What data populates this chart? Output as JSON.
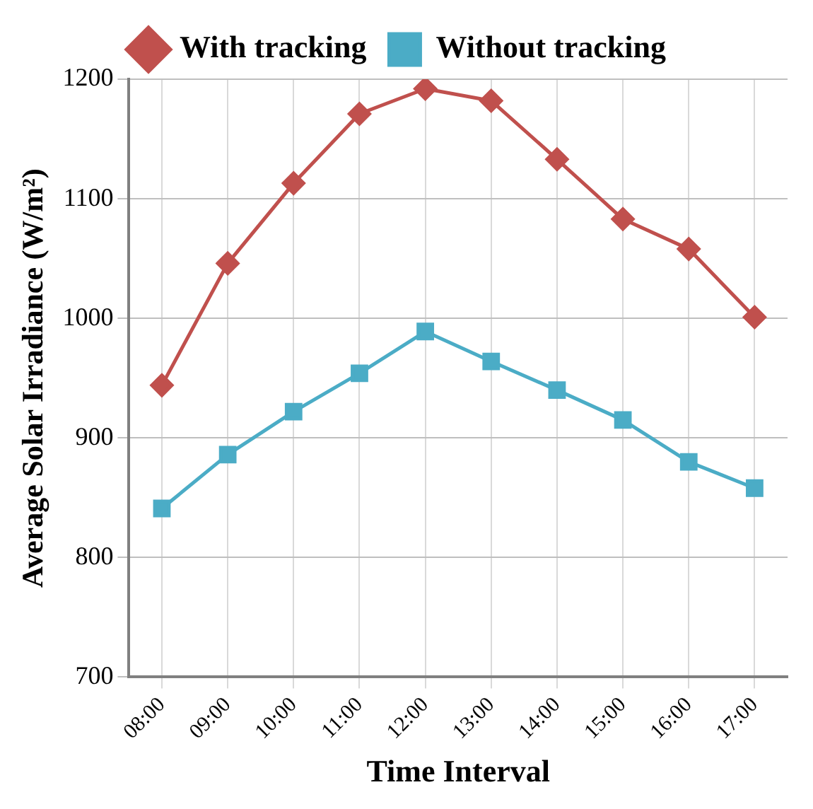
{
  "chart_data": {
    "type": "line",
    "xlabel": "Time Interval",
    "ylabel": "Average Solar Irradiance (W/m²)",
    "categories": [
      "08:00",
      "09:00",
      "10:00",
      "11:00",
      "12:00",
      "13:00",
      "14:00",
      "15:00",
      "16:00",
      "17:00"
    ],
    "series": [
      {
        "name": "With tracking",
        "color": "#c0504d",
        "marker": "diamond",
        "values": [
          944,
          1046,
          1113,
          1171,
          1192,
          1182,
          1133,
          1083,
          1058,
          1001
        ]
      },
      {
        "name": "Without tracking",
        "color": "#4bacc6",
        "marker": "square",
        "values": [
          841,
          886,
          922,
          954,
          989,
          964,
          940,
          915,
          880,
          858
        ]
      }
    ],
    "ylim": [
      700,
      1200
    ],
    "yticks": [
      700,
      800,
      900,
      1000,
      1100,
      1200
    ],
    "grid": true,
    "legend": "top",
    "line_style": "solid"
  }
}
